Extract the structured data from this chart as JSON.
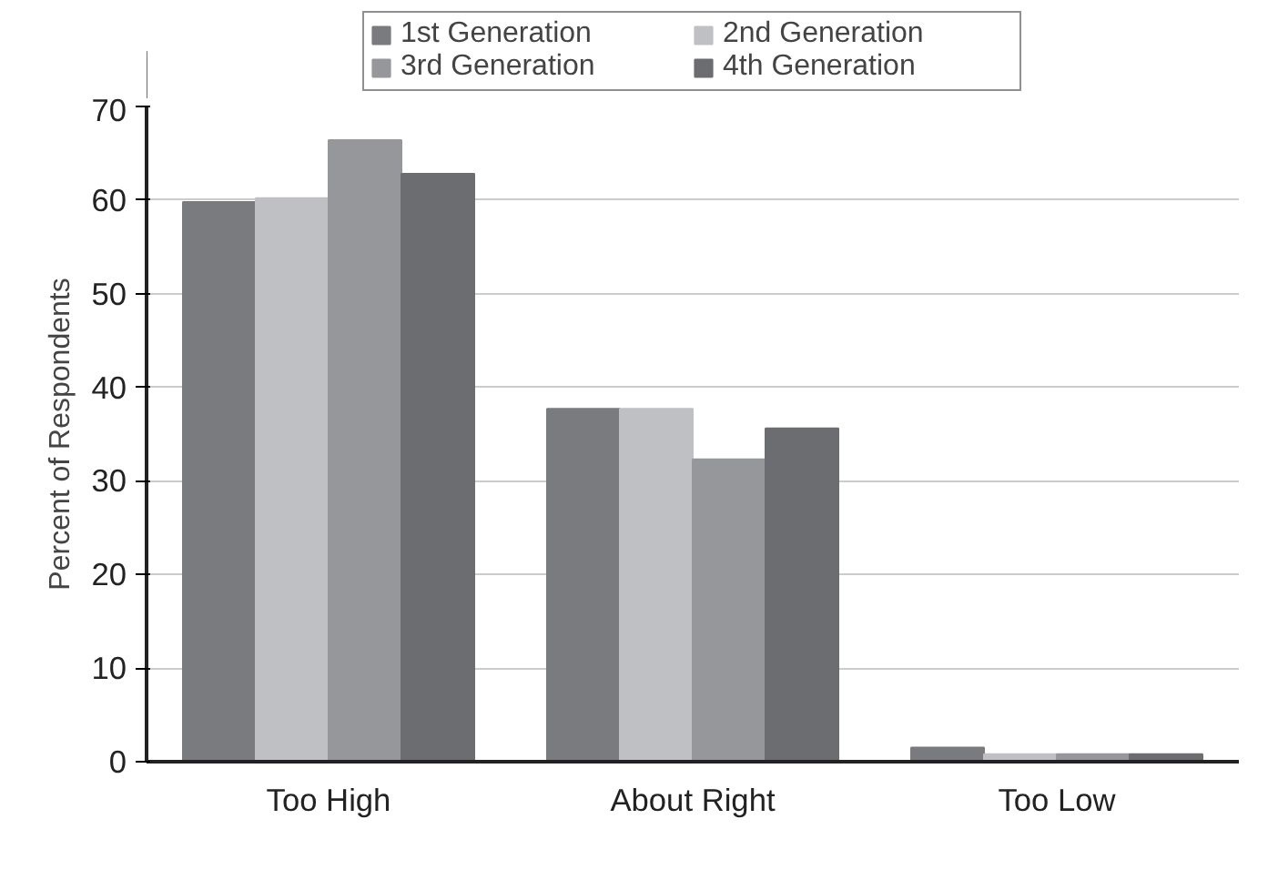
{
  "chart_data": {
    "type": "bar",
    "ylabel": "Percent of Respondents",
    "categories": [
      "Too High",
      "About Right",
      "Too Low"
    ],
    "series": [
      {
        "name": "1st Generation",
        "color": "#7a7b7f",
        "values": [
          59.8,
          37.7,
          1.5
        ]
      },
      {
        "name": "2nd Generation",
        "color": "#bfc0c4",
        "values": [
          60.2,
          37.7,
          0.8
        ]
      },
      {
        "name": "3rd Generation",
        "color": "#96979b",
        "values": [
          66.4,
          32.3,
          0.8
        ]
      },
      {
        "name": "4th Generation",
        "color": "#6c6d71",
        "values": [
          62.8,
          35.6,
          0.8
        ]
      }
    ],
    "ylim": [
      0,
      70
    ],
    "yticks": [
      0,
      10,
      20,
      30,
      40,
      50,
      60,
      70
    ],
    "grid": "y",
    "legend": "top"
  }
}
